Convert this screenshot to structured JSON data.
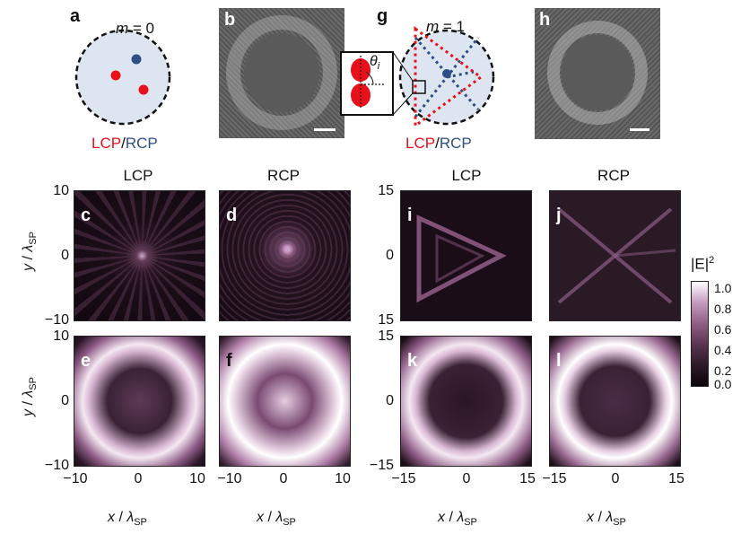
{
  "panels": {
    "a": "a",
    "b": "b",
    "c": "c",
    "d": "d",
    "e": "e",
    "f": "f",
    "g": "g",
    "h": "h",
    "i": "i",
    "j": "j",
    "k": "k",
    "l": "l"
  },
  "schematic_a": {
    "m_label": "m",
    "m_value": "= 0",
    "pol_lcp": "LCP",
    "pol_sep": "/",
    "pol_rcp": "RCP"
  },
  "schematic_g": {
    "m_label": "m",
    "m_value": "= 1",
    "theta": "θ",
    "theta_sub": "i",
    "pol_lcp": "LCP",
    "pol_sep": "/",
    "pol_rcp": "RCP"
  },
  "col_titles": {
    "c": "LCP",
    "d": "RCP",
    "i": "LCP",
    "j": "RCP"
  },
  "left_ticks": {
    "y": [
      "10",
      "0",
      "−10"
    ],
    "x": [
      "−10",
      "0",
      "10"
    ]
  },
  "right_ticks": {
    "y": [
      "15",
      "0",
      "15"
    ],
    "y_bottom": [
      "15",
      "0",
      "−15"
    ],
    "x": [
      "−15",
      "0",
      "15"
    ]
  },
  "ylabel": {
    "var": "y",
    "sep": " / ",
    "sym": "λ",
    "sub": "SP"
  },
  "xlabel": {
    "var": "x",
    "sep": " / ",
    "sym": "λ",
    "sub": "SP"
  },
  "colorbar": {
    "title": "|E|",
    "title_sup": "2",
    "ticks": [
      "1.0",
      "0.8",
      "0.6",
      "0.4",
      "0.2",
      "0.0"
    ]
  },
  "colors": {
    "lcp": "#e8101a",
    "rcp": "#2b4f86",
    "disk": "#dde6f0"
  }
}
